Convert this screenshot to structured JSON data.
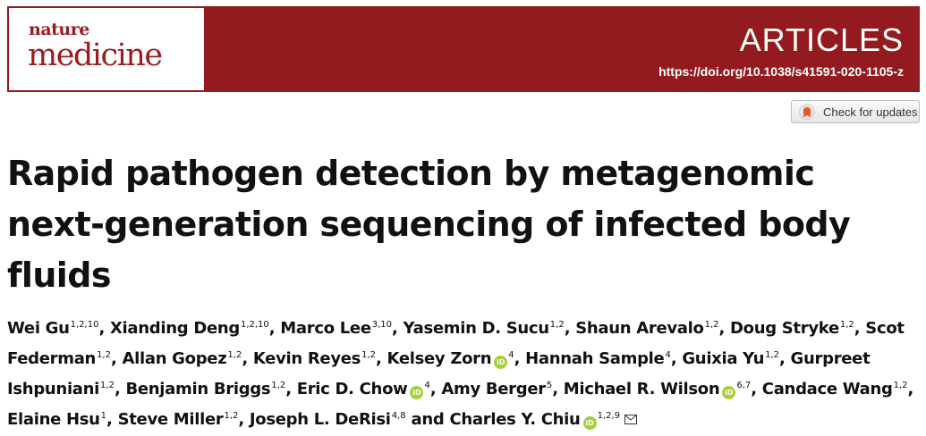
{
  "header": {
    "journal_small": "nature",
    "journal_main": "medicine",
    "section": "ARTICLES",
    "doi": "https://doi.org/10.1038/s41591-020-1105-z"
  },
  "check_updates": {
    "label": "Check for updates"
  },
  "title": "Rapid pathogen detection by metagenomic next-generation sequencing of infected body fluids",
  "authors": [
    {
      "name": "Wei Gu",
      "aff": "1,2,10",
      "sep": ", "
    },
    {
      "name": "Xianding Deng",
      "aff": "1,2,10",
      "sep": ", "
    },
    {
      "name": "Marco Lee",
      "aff": "3,10",
      "sep": ", "
    },
    {
      "name": "Yasemin D. Sucu",
      "aff": "1,2",
      "sep": ", "
    },
    {
      "name": "Shaun Arevalo",
      "aff": "1,2",
      "sep": ", "
    },
    {
      "name": "Doug Stryke",
      "aff": "1,2",
      "sep": ", "
    },
    {
      "name": "Scot Federman",
      "aff": "1,2",
      "sep": ", "
    },
    {
      "name": "Allan Gopez",
      "aff": "1,2",
      "sep": ", "
    },
    {
      "name": "Kevin Reyes",
      "aff": "1,2",
      "sep": ", "
    },
    {
      "name": "Kelsey Zorn",
      "aff": "4",
      "orcid": true,
      "sep": ", "
    },
    {
      "name": "Hannah Sample",
      "aff": "4",
      "sep": ", "
    },
    {
      "name": "Guixia Yu",
      "aff": "1,2",
      "sep": ", "
    },
    {
      "name": "Gurpreet Ishpuniani",
      "aff": "1,2",
      "sep": ", "
    },
    {
      "name": "Benjamin Briggs",
      "aff": "1,2",
      "sep": ", "
    },
    {
      "name": "Eric D. Chow",
      "aff": "4",
      "orcid": true,
      "sep": ", "
    },
    {
      "name": "Amy Berger",
      "aff": "5",
      "sep": ", "
    },
    {
      "name": "Michael R. Wilson",
      "aff": "6,7",
      "orcid": true,
      "sep": ", "
    },
    {
      "name": "Candace Wang",
      "aff": "1,2",
      "sep": ", "
    },
    {
      "name": "Elaine Hsu",
      "aff": "1",
      "sep": ", "
    },
    {
      "name": "Steve Miller",
      "aff": "1,2",
      "sep": ", "
    },
    {
      "name": "Joseph L. DeRisi",
      "aff": "4,8",
      "sep": " and "
    },
    {
      "name": "Charles Y. Chiu",
      "aff": "1,2,9",
      "orcid": true,
      "corresponding": true,
      "sep": ""
    }
  ],
  "orcid_label": "iD",
  "colors": {
    "banner": "#931b1f",
    "orcid": "#a6ce39",
    "logo_text": "#9b1b20"
  }
}
